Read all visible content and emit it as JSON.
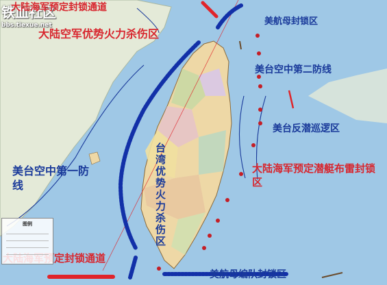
{
  "watermark": {
    "title": "铁血社区",
    "url": "bbs.tiexue.net"
  },
  "labels": {
    "north_blockade": "大陆海军预定封锁通道",
    "air_superiority": "大陆空军优势火力杀伤区",
    "carrier_blockade_north": "美航母封锁区",
    "us_tw_air_second": "美台空中第二防线",
    "us_tw_asw": "美台反潜巡逻区",
    "us_tw_air_first": "美台空中第一防线",
    "sub_minefield": "大陆海军预定潜艇布雷封锁区",
    "tw_air_superiority": "台湾优势火力杀伤区",
    "south_blockade": "大陆海军预定封锁通道",
    "carrier_formation_blockade": "美航母编队封锁区"
  },
  "legend": {
    "title": "图例"
  },
  "colors": {
    "sea": "#9fc8e6",
    "land_mainland": "#e4ead8",
    "red_text": "#d8262e",
    "blue_text": "#1a3a9a",
    "blue_line": "#1230a8",
    "red_line": "#e0242a",
    "red_dot": "#c41e26"
  }
}
